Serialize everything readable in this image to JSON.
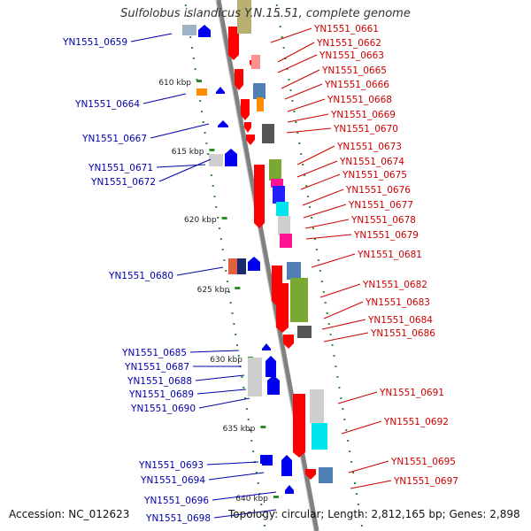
{
  "title": "Sulfolobus islandicus Y.N.15.51, complete genome",
  "accession": "Accession: NC_012623",
  "topology_line": "Topology: circular; Length: 2,812,165 bp; Genes: 2,898",
  "colors": {
    "forward_label": "#cc0000",
    "reverse_label": "#0000aa",
    "backbone": "#808080",
    "tick": "#2e8b2e"
  },
  "scale_ticks": [
    {
      "label": "610 kbp",
      "kbp": 610
    },
    {
      "label": "615 kbp",
      "kbp": 615
    },
    {
      "label": "620 kbp",
      "kbp": 620
    },
    {
      "label": "625 kbp",
      "kbp": 625
    },
    {
      "label": "630 kbp",
      "kbp": 630
    },
    {
      "label": "635 kbp",
      "kbp": 635
    },
    {
      "label": "640 kbp",
      "kbp": 640
    }
  ],
  "forward_genes": [
    {
      "label": "YN1551_0661"
    },
    {
      "label": "YN1551_0662"
    },
    {
      "label": "YN1551_0663"
    },
    {
      "label": "YN1551_0665"
    },
    {
      "label": "YN1551_0666"
    },
    {
      "label": "YN1551_0668"
    },
    {
      "label": "YN1551_0669"
    },
    {
      "label": "YN1551_0670"
    },
    {
      "label": "YN1551_0673"
    },
    {
      "label": "YN1551_0674"
    },
    {
      "label": "YN1551_0675"
    },
    {
      "label": "YN1551_0676"
    },
    {
      "label": "YN1551_0677"
    },
    {
      "label": "YN1551_0678"
    },
    {
      "label": "YN1551_0679"
    },
    {
      "label": "YN1551_0681"
    },
    {
      "label": "YN1551_0682"
    },
    {
      "label": "YN1551_0683"
    },
    {
      "label": "YN1551_0684"
    },
    {
      "label": "YN1551_0686"
    },
    {
      "label": "YN1551_0691"
    },
    {
      "label": "YN1551_0692"
    },
    {
      "label": "YN1551_0695"
    },
    {
      "label": "YN1551_0697"
    }
  ],
  "reverse_genes": [
    {
      "label": "YN1551_0659"
    },
    {
      "label": "YN1551_0664"
    },
    {
      "label": "YN1551_0667"
    },
    {
      "label": "YN1551_0671"
    },
    {
      "label": "YN1551_0672"
    },
    {
      "label": "YN1551_0680"
    },
    {
      "label": "YN1551_0685"
    },
    {
      "label": "YN1551_0687"
    },
    {
      "label": "YN1551_0688"
    },
    {
      "label": "YN1551_0689"
    },
    {
      "label": "YN1551_0690"
    },
    {
      "label": "YN1551_0693"
    },
    {
      "label": "YN1551_0694"
    },
    {
      "label": "YN1551_0696"
    },
    {
      "label": "YN1551_0698"
    }
  ]
}
